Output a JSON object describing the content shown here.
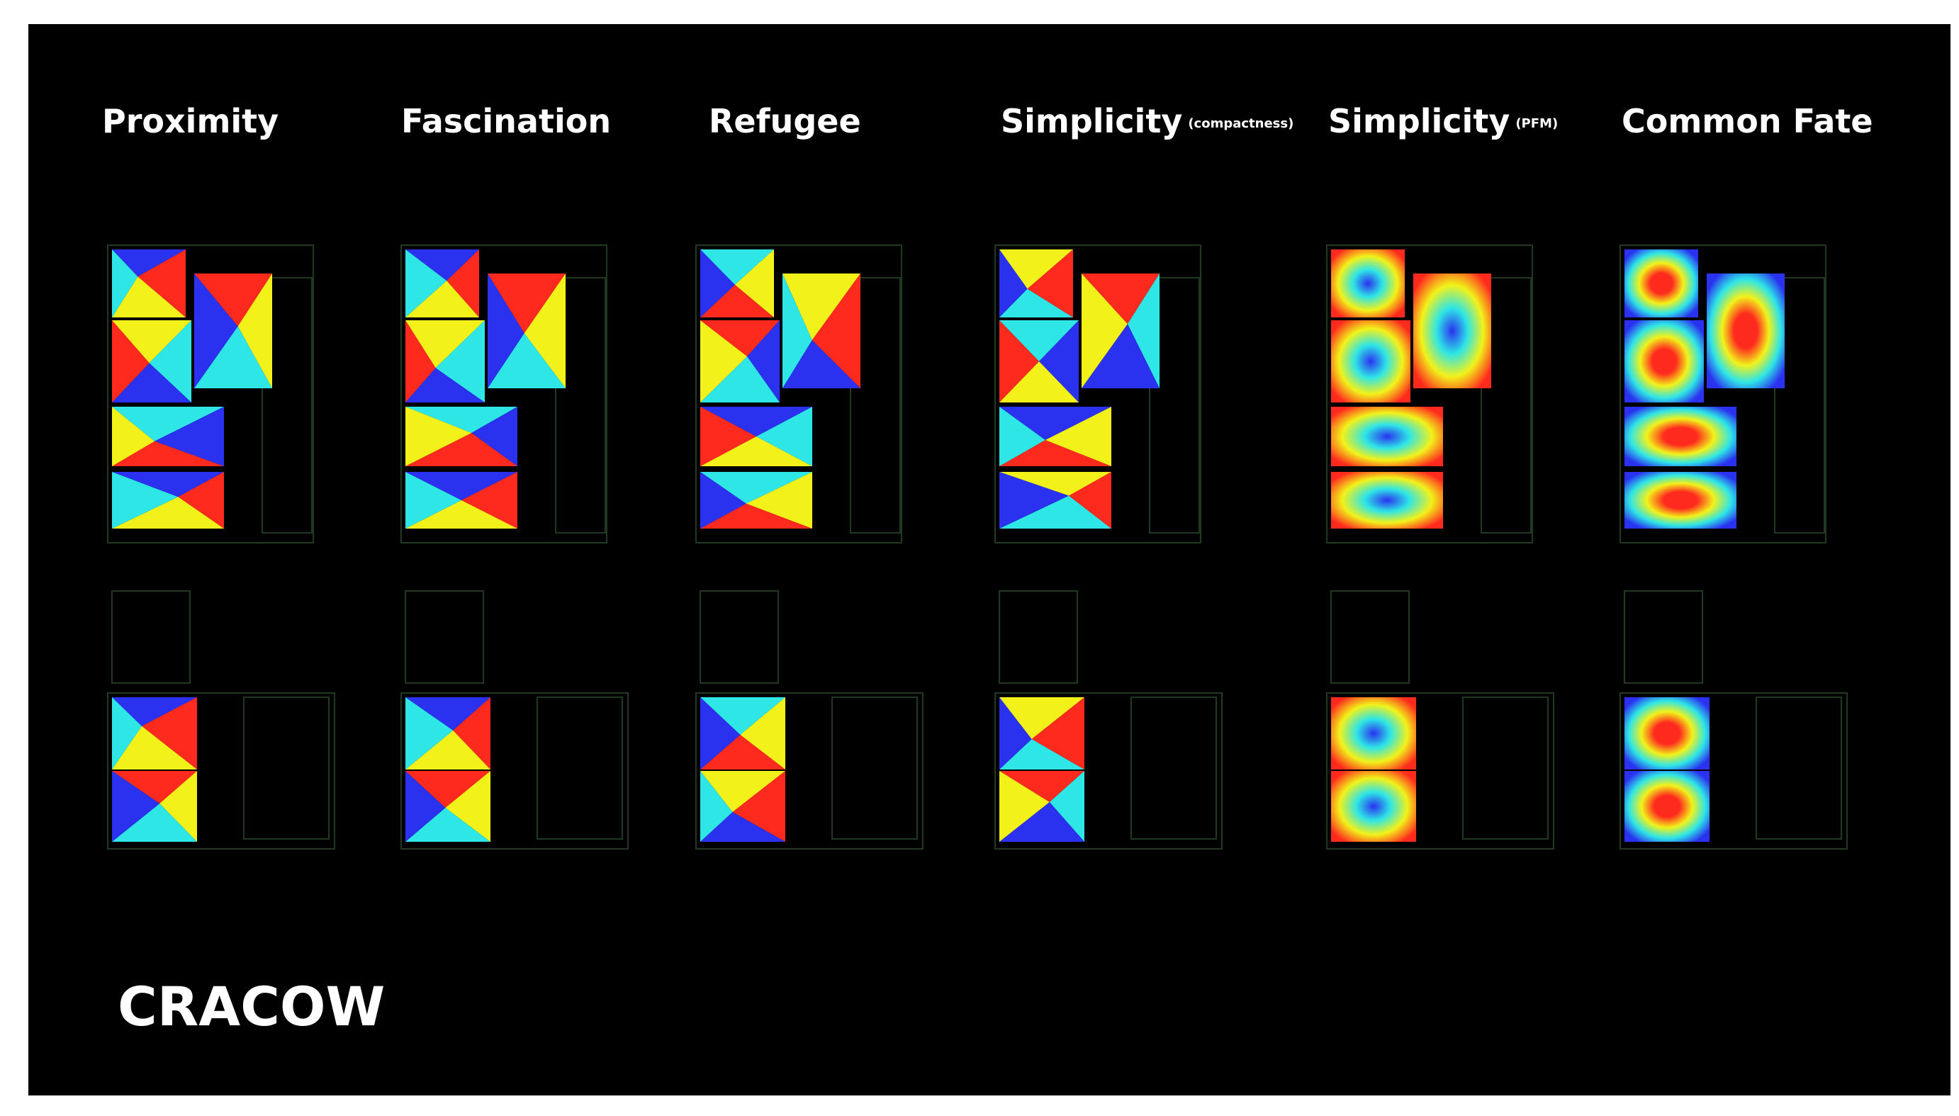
{
  "columns": [
    {
      "id": "proximity",
      "title": "Proximity",
      "qualifier": ""
    },
    {
      "id": "fascination",
      "title": "Fascination",
      "qualifier": ""
    },
    {
      "id": "refugee",
      "title": "Refugee",
      "qualifier": ""
    },
    {
      "id": "simplicity-compactness",
      "title": "Simplicity",
      "qualifier": "(compactness)"
    },
    {
      "id": "simplicity-pfm",
      "title": "Simplicity",
      "qualifier": "(PFM)"
    },
    {
      "id": "common-fate",
      "title": "Common Fate",
      "qualifier": ""
    }
  ],
  "footer": {
    "city": "CRACOW"
  },
  "palette": {
    "background": "#000000",
    "outline": "#1f3a1f",
    "red": "#ff2a1e",
    "yellow": "#f2f21a",
    "cyan": "#2ee6e6",
    "blue": "#2a32f0",
    "green": "#7cf04a"
  }
}
